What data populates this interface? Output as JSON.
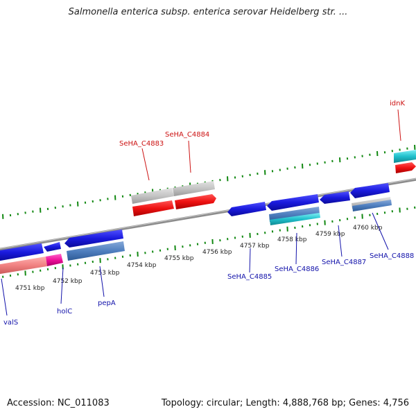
{
  "title": "Salmonella enterica subsp. enterica serovar Heidelberg str. ...",
  "accession": "Accession: NC_011083",
  "topology": "Topology: circular; Length: 4,888,768 bp; Genes: 4,756",
  "colors": {
    "backbone": "#909090",
    "tick": "#118811",
    "forward_gene": "#1a1add",
    "cds_blue": "#4f7fbf",
    "red_gene": "#ee1111",
    "gray_gene": "#c4c4c4",
    "cyan_gene": "#20c0cc",
    "pink_gene": "#f08080",
    "magenta_gene": "#ee1199",
    "label_blue": "#1111aa",
    "label_red": "#cc1111"
  },
  "kbp_labels": [
    "4751 kbp",
    "4752 kbp",
    "4753 kbp",
    "4754 kbp",
    "4755 kbp",
    "4756 kbp",
    "4757 kbp",
    "4758 kbp",
    "4759 kbp",
    "4760 kbp"
  ],
  "gene_labels_top": [
    "SeHA_C4883",
    "SeHA_C4884",
    "idnK"
  ],
  "gene_labels_bottom": [
    "valS",
    "holC",
    "pepA",
    "SeHA_C4885",
    "SeHA_C4886",
    "SeHA_C4887",
    "SeHA_C4888"
  ]
}
